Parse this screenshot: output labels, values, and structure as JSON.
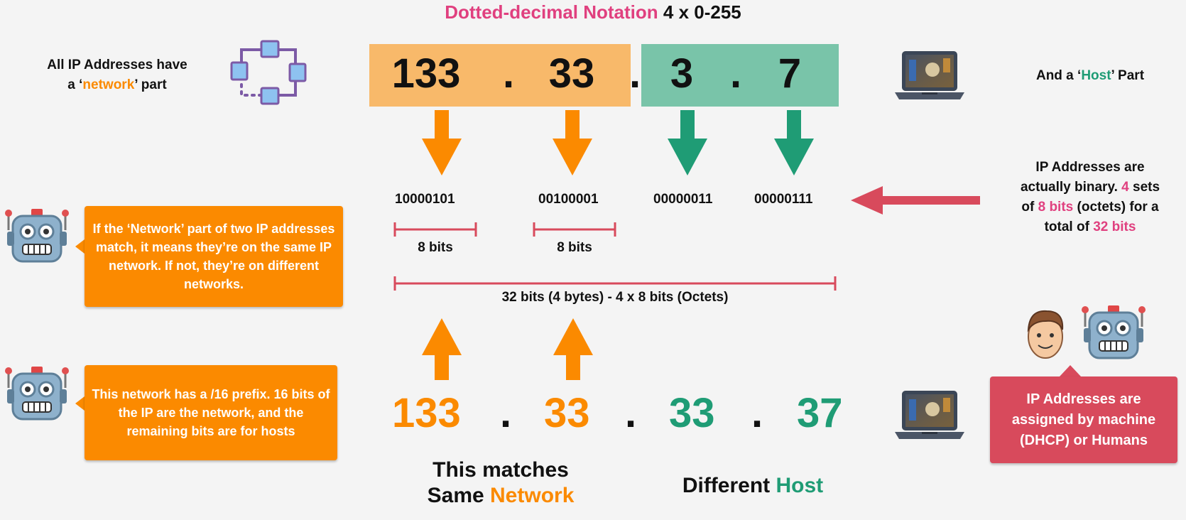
{
  "title": {
    "part1": "Dotted-decimal Notation",
    "part2": "4 x 0-255"
  },
  "left_top": {
    "line1": "All IP Addresses have",
    "line2_pre": "a ‘",
    "line2_word": "network",
    "line2_post": "’ part"
  },
  "right_top": {
    "pre": "And a ‘",
    "word": "Host",
    "post": "’ Part"
  },
  "ip_top": {
    "octets": [
      "133",
      "33",
      "3",
      "7"
    ],
    "separator": "."
  },
  "binary": [
    "10000101",
    "00100001",
    "00000011",
    "00000111"
  ],
  "bits_label": "8 bits",
  "total_label": "32 bits (4 bytes) - 4 x 8 bits (Octets)",
  "right_mid": {
    "l1": "IP Addresses are",
    "l2_pre": "actually binary. ",
    "l2_num": "4",
    "l2_post": " sets",
    "l3_pre": "of ",
    "l3_hl": "8 bits",
    "l3_post": " (octets) for a",
    "l4_pre": "total of ",
    "l4_hl": "32 bits"
  },
  "callout1": {
    "text": "If the ‘Network’ part of two IP addresses match, it means they’re on the same IP network. If not, they’re on different networks."
  },
  "callout2": {
    "text": "This network has a /16 prefix. 16 bits of the IP are the network, and the remaining bits are for hosts"
  },
  "callout3": {
    "text": "IP Addresses are assigned by machine (DHCP) or Humans"
  },
  "ip_bottom": {
    "octets": [
      "133",
      "33",
      "33",
      "37"
    ],
    "separator": "."
  },
  "caption_left": {
    "line1": "This matches",
    "line2_pre": "Same ",
    "line2_word": "Network"
  },
  "caption_right": {
    "pre": "Different ",
    "word": "Host"
  },
  "colors": {
    "network": "#fb8a00",
    "host": "#1f9c75",
    "accent": "#e0407f",
    "bracket": "#d84a5c",
    "network_block": "#f8b96a",
    "host_block": "#79c4a9"
  }
}
